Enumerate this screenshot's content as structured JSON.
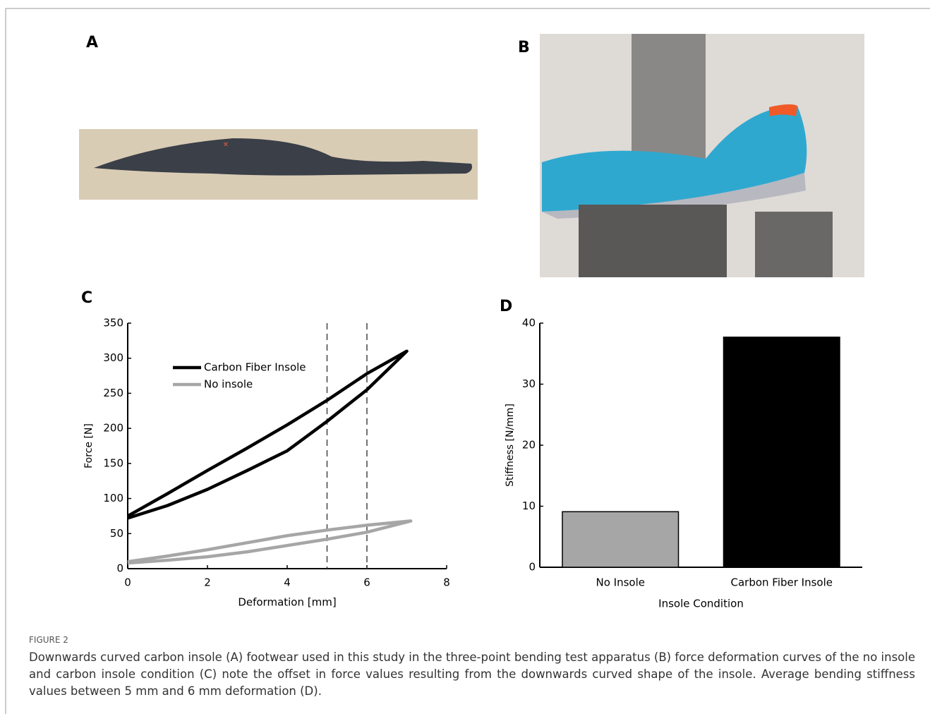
{
  "panels": {
    "a": "A",
    "b": "B",
    "c": "C",
    "d": "D"
  },
  "chart_data": [
    {
      "type": "line",
      "xlabel": "Deformation [mm]",
      "ylabel": "Force [N]",
      "xlim": [
        0,
        8
      ],
      "xticks": [
        0,
        2,
        4,
        6,
        8
      ],
      "ylim": [
        0,
        350
      ],
      "yticks": [
        0,
        50,
        100,
        150,
        200,
        250,
        300,
        350
      ],
      "vlines": [
        5,
        6
      ],
      "series": [
        {
          "name": "Carbon Fiber Insole",
          "color": "#000000",
          "x": [
            0,
            1,
            2,
            3,
            4,
            5,
            6,
            7,
            6,
            5,
            4,
            3,
            2,
            1,
            0
          ],
          "values": [
            75,
            107,
            140,
            172,
            205,
            240,
            278,
            310,
            255,
            210,
            168,
            140,
            113,
            90,
            72
          ]
        },
        {
          "name": "No insole",
          "color": "#a6a6a6",
          "x": [
            0,
            1,
            2,
            3,
            4,
            5,
            6,
            7.1,
            6,
            5,
            4,
            3,
            2,
            1,
            0
          ],
          "values": [
            10,
            18,
            27,
            37,
            47,
            55,
            62,
            68,
            52,
            42,
            33,
            24,
            17,
            12,
            8
          ]
        }
      ]
    },
    {
      "type": "bar",
      "xlabel": "Insole Condition",
      "ylabel": "Stiffness [N/mm]",
      "categories": [
        "No Insole",
        "Carbon Fiber Insole"
      ],
      "values": [
        9.1,
        37.7
      ],
      "colors": [
        "#a6a6a6",
        "#000000"
      ],
      "ylim": [
        0,
        40
      ],
      "yticks": [
        0,
        10,
        20,
        30,
        40
      ]
    }
  ],
  "caption": {
    "label": "FIGURE 2",
    "text": "Downwards curved carbon insole (A) footwear used in this study in the three-point bending test apparatus (B) force deformation curves of the no insole and carbon insole condition (C) note the offset in force values resulting from the downwards curved shape of the insole. Average bending stiffness values between 5 mm and 6 mm deformation (D)."
  }
}
